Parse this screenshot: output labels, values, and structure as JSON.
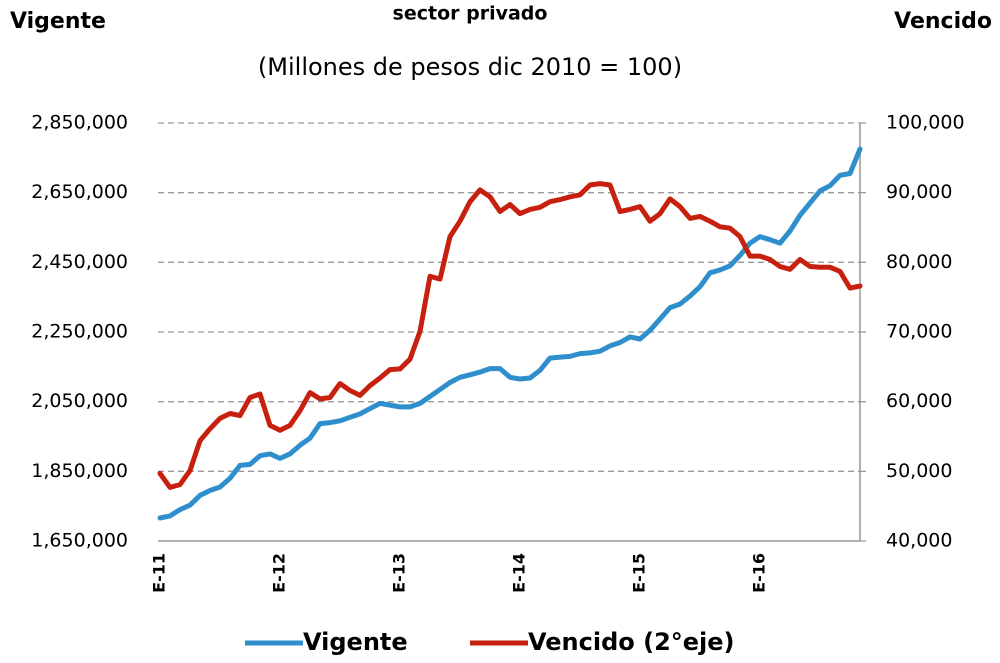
{
  "chart_data": {
    "type": "line",
    "title": "sector privado",
    "subtitle": "(Millones de pesos dic 2010 = 100)",
    "ylabel": "Vigente",
    "y2label": "Vencido",
    "categories": [
      "E-11",
      null,
      null,
      null,
      null,
      null,
      null,
      null,
      null,
      null,
      null,
      null,
      "E-12",
      null,
      null,
      null,
      null,
      null,
      null,
      null,
      null,
      null,
      null,
      null,
      "E-13",
      null,
      null,
      null,
      null,
      null,
      null,
      null,
      null,
      null,
      null,
      null,
      "E-14",
      null,
      null,
      null,
      null,
      null,
      null,
      null,
      null,
      null,
      null,
      null,
      "E-15",
      null,
      null,
      null,
      null,
      null,
      null,
      null,
      null,
      null,
      null,
      null,
      "E-16",
      null,
      null,
      null,
      null,
      null,
      null,
      null,
      null,
      null,
      null
    ],
    "series": [
      {
        "name": "Vigente",
        "color": "#2e8fcc",
        "axis": "y",
        "values": [
          1716000,
          1722000,
          1740000,
          1753000,
          1781000,
          1795000,
          1805000,
          1830000,
          1867000,
          1870000,
          1895000,
          1900000,
          1887000,
          1900000,
          1925000,
          1945000,
          1987000,
          1990000,
          1995000,
          2005000,
          2015000,
          2030000,
          2045000,
          2040000,
          2035000,
          2035000,
          2045000,
          2065000,
          2085000,
          2105000,
          2120000,
          2127000,
          2135000,
          2145000,
          2145000,
          2120000,
          2115000,
          2118000,
          2140000,
          2175000,
          2178000,
          2180000,
          2188000,
          2190000,
          2195000,
          2210000,
          2220000,
          2236000,
          2230000,
          2255000,
          2287000,
          2320000,
          2330000,
          2353000,
          2380000,
          2420000,
          2428000,
          2440000,
          2470000,
          2505000,
          2524000,
          2515000,
          2505000,
          2540000,
          2585000,
          2620000,
          2655000,
          2670000,
          2700000,
          2705000,
          2775000
        ]
      },
      {
        "name": "Vencido (2°eje)",
        "color": "#c8200e",
        "axis": "y2",
        "values": [
          49700,
          47700,
          48100,
          50100,
          54400,
          56100,
          57600,
          58300,
          58000,
          60600,
          61100,
          56600,
          55900,
          56600,
          58700,
          61300,
          60400,
          60600,
          62600,
          61600,
          60900,
          62300,
          63400,
          64600,
          64700,
          66100,
          70100,
          78000,
          77600,
          83700,
          85900,
          88700,
          90400,
          89400,
          87300,
          88300,
          87000,
          87600,
          87900,
          88700,
          89000,
          89400,
          89700,
          91100,
          91300,
          91100,
          87300,
          87600,
          88000,
          85900,
          87000,
          89100,
          88000,
          86300,
          86600,
          85900,
          85100,
          84900,
          83700,
          80900,
          80900,
          80400,
          79400,
          79000,
          80400,
          79400,
          79300,
          79300,
          78700,
          76300,
          76600
        ]
      }
    ],
    "ylim": [
      1650000,
      2850000
    ],
    "yticks": [
      {
        "value": 1650000,
        "label": "1,650,000"
      },
      {
        "value": 1850000,
        "label": "1,850,000"
      },
      {
        "value": 2050000,
        "label": "2,050,000"
      },
      {
        "value": 2250000,
        "label": "2,250,000"
      },
      {
        "value": 2450000,
        "label": "2,450,000"
      },
      {
        "value": 2650000,
        "label": "2,650,000"
      },
      {
        "value": 2850000,
        "label": "2,850,000"
      }
    ],
    "y2lim": [
      40000,
      100000
    ],
    "y2ticks": [
      {
        "value": 40000,
        "label": "40,000"
      },
      {
        "value": 50000,
        "label": "50,000"
      },
      {
        "value": 60000,
        "label": "60,000"
      },
      {
        "value": 70000,
        "label": "70,000"
      },
      {
        "value": 80000,
        "label": "80,000"
      },
      {
        "value": 90000,
        "label": "90,000"
      },
      {
        "value": 100000,
        "label": "100,000"
      }
    ],
    "grid": true,
    "legend": "bottom"
  }
}
